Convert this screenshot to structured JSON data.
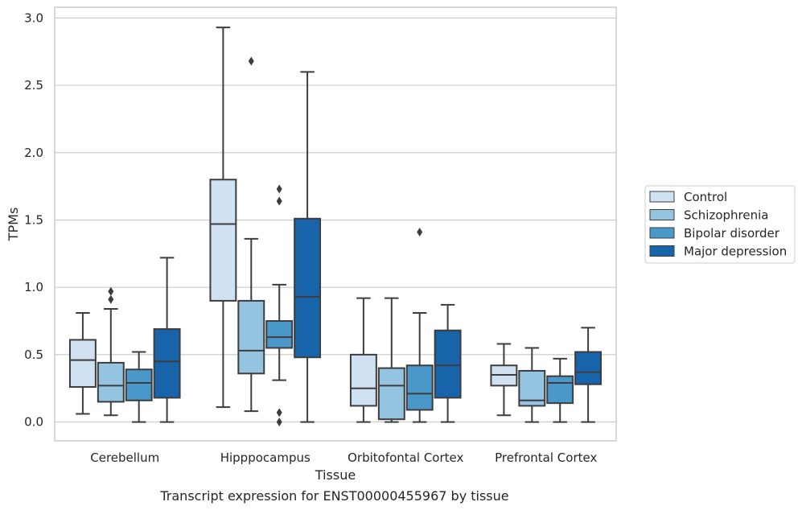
{
  "chart_data": {
    "type": "box",
    "caption": "Transcript expression for ENST00000455967 by tissue",
    "xlabel": "Tissue",
    "ylabel": "TPMs",
    "ylim": [
      -0.14,
      3.08
    ],
    "yticks": [
      "0.0",
      "0.5",
      "1.0",
      "1.5",
      "2.0",
      "2.5",
      "3.0"
    ],
    "grid": "horizontal",
    "legend_position": "right",
    "categories": [
      "Cerebellum",
      "Hipppocampus",
      "Orbitofontal Cortex",
      "Prefrontal Cortex"
    ],
    "series": [
      {
        "name": "Control",
        "color": "#d0e1f2",
        "boxes": [
          {
            "min": 0.06,
            "q1": 0.26,
            "median": 0.46,
            "q3": 0.61,
            "max": 0.81,
            "outliers": []
          },
          {
            "min": 0.11,
            "q1": 0.9,
            "median": 1.47,
            "q3": 1.8,
            "max": 2.93,
            "outliers": []
          },
          {
            "min": 0.0,
            "q1": 0.12,
            "median": 0.25,
            "q3": 0.5,
            "max": 0.92,
            "outliers": []
          },
          {
            "min": 0.05,
            "q1": 0.27,
            "median": 0.35,
            "q3": 0.42,
            "max": 0.58,
            "outliers": []
          }
        ]
      },
      {
        "name": "Schizophrenia",
        "color": "#94c4df",
        "boxes": [
          {
            "min": 0.05,
            "q1": 0.15,
            "median": 0.27,
            "q3": 0.44,
            "max": 0.84,
            "outliers": [
              0.91,
              0.97
            ]
          },
          {
            "min": 0.08,
            "q1": 0.36,
            "median": 0.53,
            "q3": 0.9,
            "max": 1.36,
            "outliers": [
              2.68
            ]
          },
          {
            "min": 0.0,
            "q1": 0.02,
            "median": 0.27,
            "q3": 0.4,
            "max": 0.92,
            "outliers": []
          },
          {
            "min": 0.0,
            "q1": 0.12,
            "median": 0.16,
            "q3": 0.38,
            "max": 0.55,
            "outliers": []
          }
        ]
      },
      {
        "name": "Bipolar disorder",
        "color": "#4a98c9",
        "boxes": [
          {
            "min": 0.0,
            "q1": 0.16,
            "median": 0.29,
            "q3": 0.39,
            "max": 0.52,
            "outliers": []
          },
          {
            "min": 0.31,
            "q1": 0.55,
            "median": 0.63,
            "q3": 0.75,
            "max": 1.02,
            "outliers": [
              1.64,
              1.73,
              0.07,
              0.0
            ]
          },
          {
            "min": 0.0,
            "q1": 0.09,
            "median": 0.21,
            "q3": 0.42,
            "max": 0.81,
            "outliers": [
              1.41
            ]
          },
          {
            "min": 0.0,
            "q1": 0.14,
            "median": 0.29,
            "q3": 0.34,
            "max": 0.47,
            "outliers": []
          }
        ]
      },
      {
        "name": "Major depression",
        "color": "#1764ab",
        "boxes": [
          {
            "min": 0.0,
            "q1": 0.18,
            "median": 0.45,
            "q3": 0.69,
            "max": 1.22,
            "outliers": []
          },
          {
            "min": 0.0,
            "q1": 0.48,
            "median": 0.93,
            "q3": 1.51,
            "max": 2.6,
            "outliers": []
          },
          {
            "min": 0.0,
            "q1": 0.18,
            "median": 0.42,
            "q3": 0.68,
            "max": 0.87,
            "outliers": []
          },
          {
            "min": 0.0,
            "q1": 0.28,
            "median": 0.37,
            "q3": 0.52,
            "max": 0.7,
            "outliers": []
          }
        ]
      }
    ]
  }
}
